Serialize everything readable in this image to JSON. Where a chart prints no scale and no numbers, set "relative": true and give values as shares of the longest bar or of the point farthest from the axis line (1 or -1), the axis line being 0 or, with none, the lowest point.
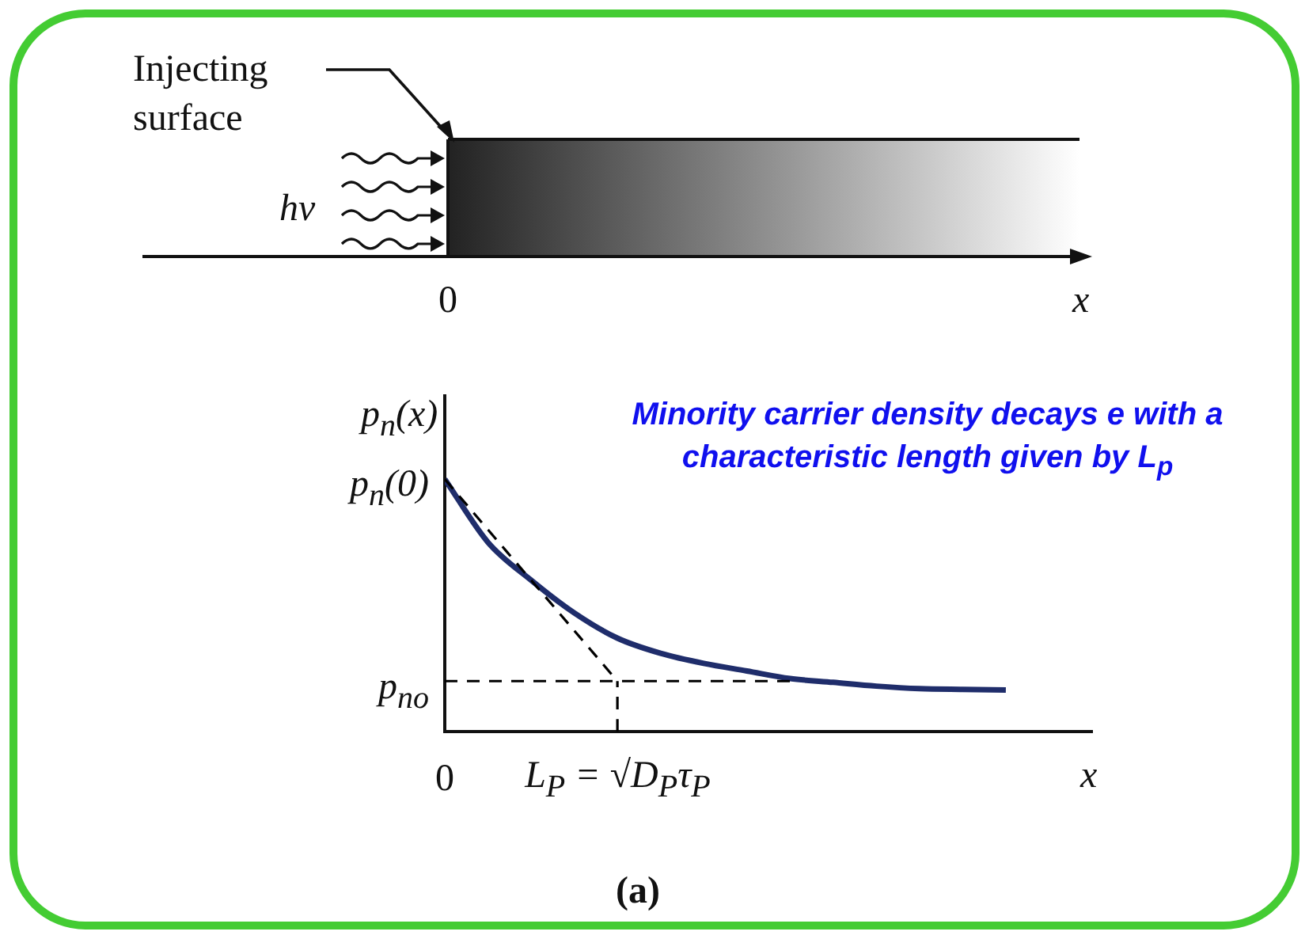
{
  "chart_data": {
    "type": "line",
    "relative": true,
    "marker": "none",
    "xlabel": "x",
    "ylabel": "p$_{n}$(x)",
    "categories": [
      "0",
      null,
      null,
      null,
      "L$_{P}$ = √D$_{P}$τ$_{P}$",
      null,
      null,
      null,
      null,
      null,
      null,
      null,
      null,
      null,
      null,
      null
    ],
    "series": [
      {
        "values": [
          1,
          0.75,
          0.6,
          0.47,
          0.37,
          0.31,
          0.27,
          0.24,
          0.21,
          0.195,
          0.18,
          0.17,
          0.167,
          0.165,
          null,
          null
        ],
        "color": "#1f2d6b"
      },
      {
        "values": [
          1,
          0.8,
          0.6,
          0.4,
          0.2,
          null,
          null,
          null,
          null,
          null,
          null,
          null,
          null,
          null,
          null,
          null
        ],
        "color": "#000000",
        "line_style": "dashed"
      },
      {
        "values": [
          0.2,
          0.2,
          0.2,
          0.2,
          0.2,
          0.2,
          0.2,
          0.2,
          0.2,
          null,
          null,
          null,
          null,
          null,
          null,
          null
        ],
        "color": "#000000",
        "line_style": "dashed"
      },
      {
        "x": [
          "L$_{P}$ = √D$_{P}$τ$_{P}$",
          "L$_{P}$ = √D$_{P}$τ$_{P}$"
        ],
        "values": [
          0,
          0.2
        ],
        "color": "#000000",
        "line_style": "dashed"
      }
    ],
    "annotations": [
      "Minority carrier density decays e with a characteristic length given by L$_{p}$",
      "(a)",
      "Injecting surface",
      "hν",
      "0",
      "x",
      {
        "text": "p$_{n}$(0)",
        "x": "0",
        "y": 1
      },
      {
        "text": "p$_{no}$",
        "x": "0",
        "y": 0.2
      }
    ]
  }
}
